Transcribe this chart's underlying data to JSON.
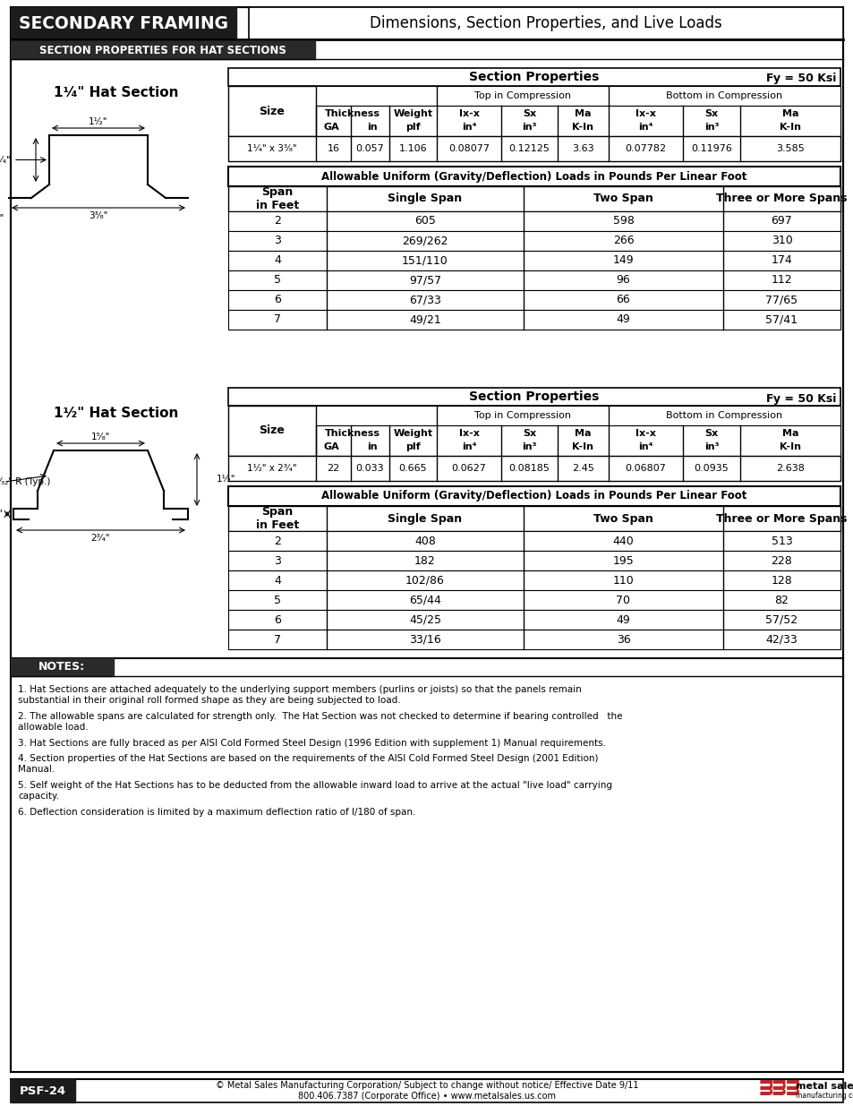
{
  "title_black": "SECONDARY FRAMING",
  "title_gray": "Dimensions, Section Properties, and Live Loads",
  "section_header": "SECTION PROPERTIES FOR HAT SECTIONS",
  "fy_label": "Fy = 50 Ksi",
  "section1": {
    "title": "1¹⁄₄\" Hat Section",
    "data_row": [
      "1¹⁄₄\" x 3³⁄₈\"",
      "16",
      "0.057",
      "1.106",
      "0.08077",
      "0.12125",
      "3.63",
      "0.07782",
      "0.11976",
      "3.585"
    ],
    "loads_header": "Allowable Uniform (Gravity/Deflection) Loads in Pounds Per Linear Foot",
    "loads_data": [
      [
        "2",
        "605",
        "598",
        "697"
      ],
      [
        "3",
        "269/262",
        "266",
        "310"
      ],
      [
        "4",
        "151/110",
        "149",
        "174"
      ],
      [
        "5",
        "97/57",
        "96",
        "112"
      ],
      [
        "6",
        "67/33",
        "66",
        "77/65"
      ],
      [
        "7",
        "49/21",
        "49",
        "57/41"
      ]
    ]
  },
  "section2": {
    "title": "1¹⁄₂\" Hat Section",
    "data_row": [
      "1¹⁄₂\" x 2³⁄₄\"",
      "22",
      "0.033",
      "0.665",
      "0.0627",
      "0.08185",
      "2.45",
      "0.06807",
      "0.0935",
      "2.638"
    ],
    "loads_header": "Allowable Uniform (Gravity/Deflection) Loads in Pounds Per Linear Foot",
    "loads_data": [
      [
        "2",
        "408",
        "440",
        "513"
      ],
      [
        "3",
        "182",
        "195",
        "228"
      ],
      [
        "4",
        "102/86",
        "110",
        "128"
      ],
      [
        "5",
        "65/44",
        "70",
        "82"
      ],
      [
        "6",
        "45/25",
        "49",
        "57/52"
      ],
      [
        "7",
        "33/16",
        "36",
        "42/33"
      ]
    ]
  },
  "notes_header": "NOTES:",
  "notes": [
    "1. Hat Sections are attached adequately to the underlying support members (purlins or joists) so that the panels remain\nsubstantial in their original roll formed shape as they are being subjected to load.",
    "2. The allowable spans are calculated for strength only.  The Hat Section was not checked to determine if bearing controlled   the\nallowable load.",
    "3. Hat Sections are fully braced as per AISI Cold Formed Steel Design (1996 Edition with supplement 1) Manual requirements.",
    "4. Section properties of the Hat Sections are based on the requirements of the AISI Cold Formed Steel Design (2001 Edition)\nManual.",
    "5. Self weight of the Hat Sections has to be deducted from the allowable inward load to arrive at the actual \"live load\" carrying\ncapacity.",
    "6. Deflection consideration is limited by a maximum deflection ratio of l/180 of span."
  ],
  "footer_left": "PSF-24",
  "footer_center": "© Metal Sales Manufacturing Corporation/ Subject to change without notice/ Effective Date 9/11\n800.406.7387 (Corporate Office) • www.metalsales.us.com"
}
